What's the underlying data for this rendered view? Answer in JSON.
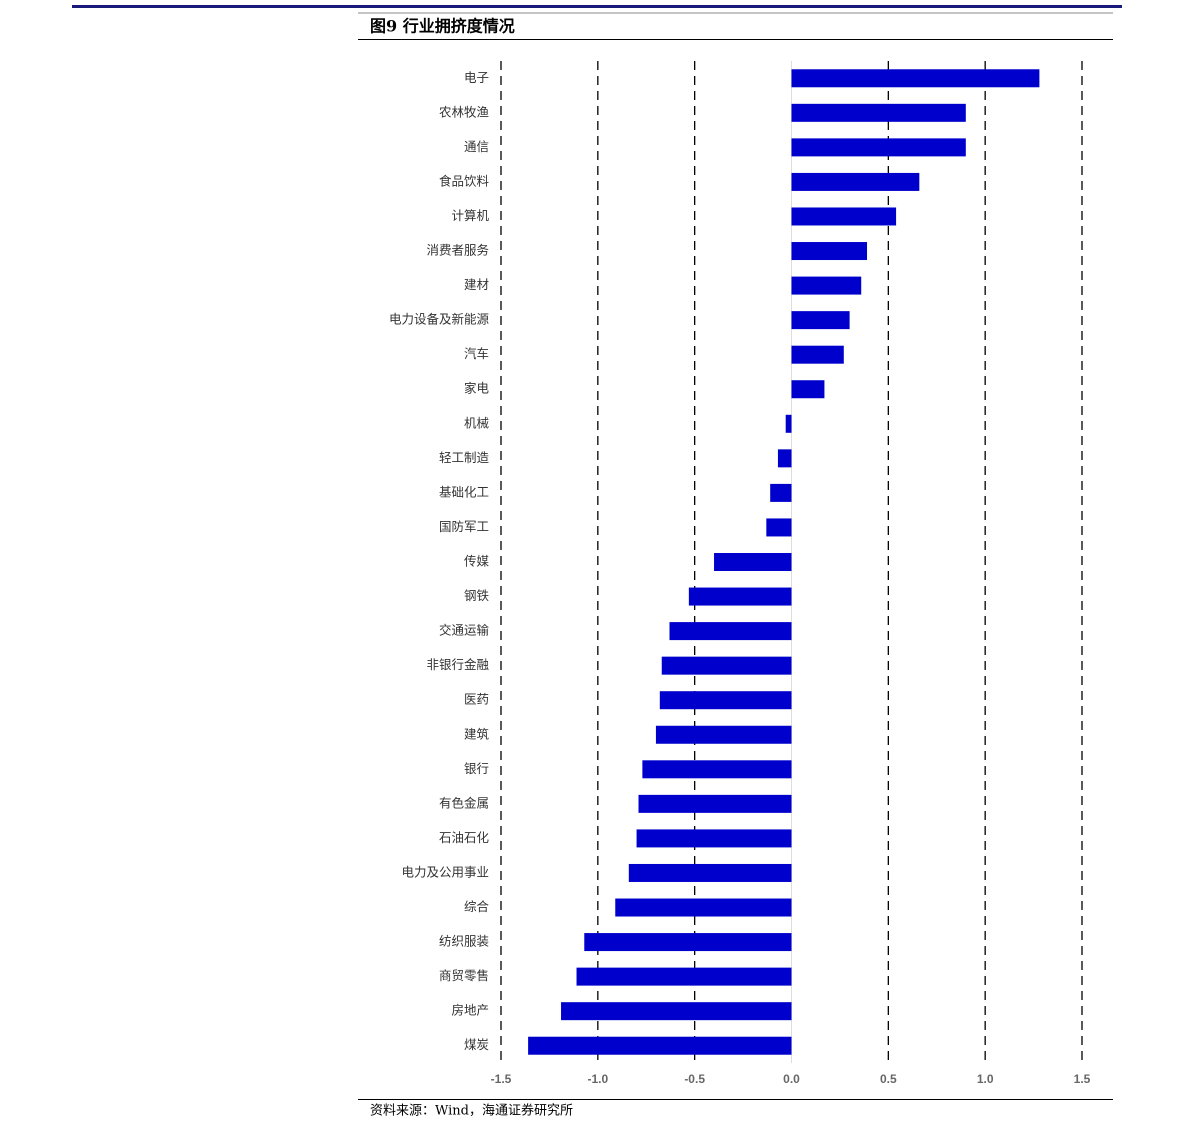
{
  "chart_data": {
    "type": "barh",
    "title": "图9  行业拥挤度情况",
    "source": "资料来源：Wind，海通证券研究所",
    "categories": [
      "电子",
      "农林牧渔",
      "通信",
      "食品饮料",
      "计算机",
      "消费者服务",
      "建材",
      "电力设备及新能源",
      "汽车",
      "家电",
      "机械",
      "轻工制造",
      "基础化工",
      "国防军工",
      "传媒",
      "钢铁",
      "交通运输",
      "非银行金融",
      "医药",
      "建筑",
      "银行",
      "有色金属",
      "石油石化",
      "电力及公用事业",
      "综合",
      "纺织服装",
      "商贸零售",
      "房地产",
      "煤炭"
    ],
    "values": [
      1.28,
      0.9,
      0.9,
      0.66,
      0.54,
      0.39,
      0.36,
      0.3,
      0.27,
      0.17,
      -0.03,
      -0.07,
      -0.11,
      -0.13,
      -0.4,
      -0.53,
      -0.63,
      -0.67,
      -0.68,
      -0.7,
      -0.77,
      -0.79,
      -0.8,
      -0.84,
      -0.91,
      -1.07,
      -1.11,
      -1.19,
      -1.36
    ],
    "color": "#0000cc",
    "xlim": [
      -1.5,
      1.5
    ],
    "xticks": [
      -1.5,
      {
        "value": -1,
        "label": "-1.0"
      },
      -0.5,
      {
        "value": 0,
        "label": "0.0"
      },
      0.5,
      {
        "value": 1,
        "label": "1.0"
      },
      1.5
    ],
    "grid": true
  }
}
